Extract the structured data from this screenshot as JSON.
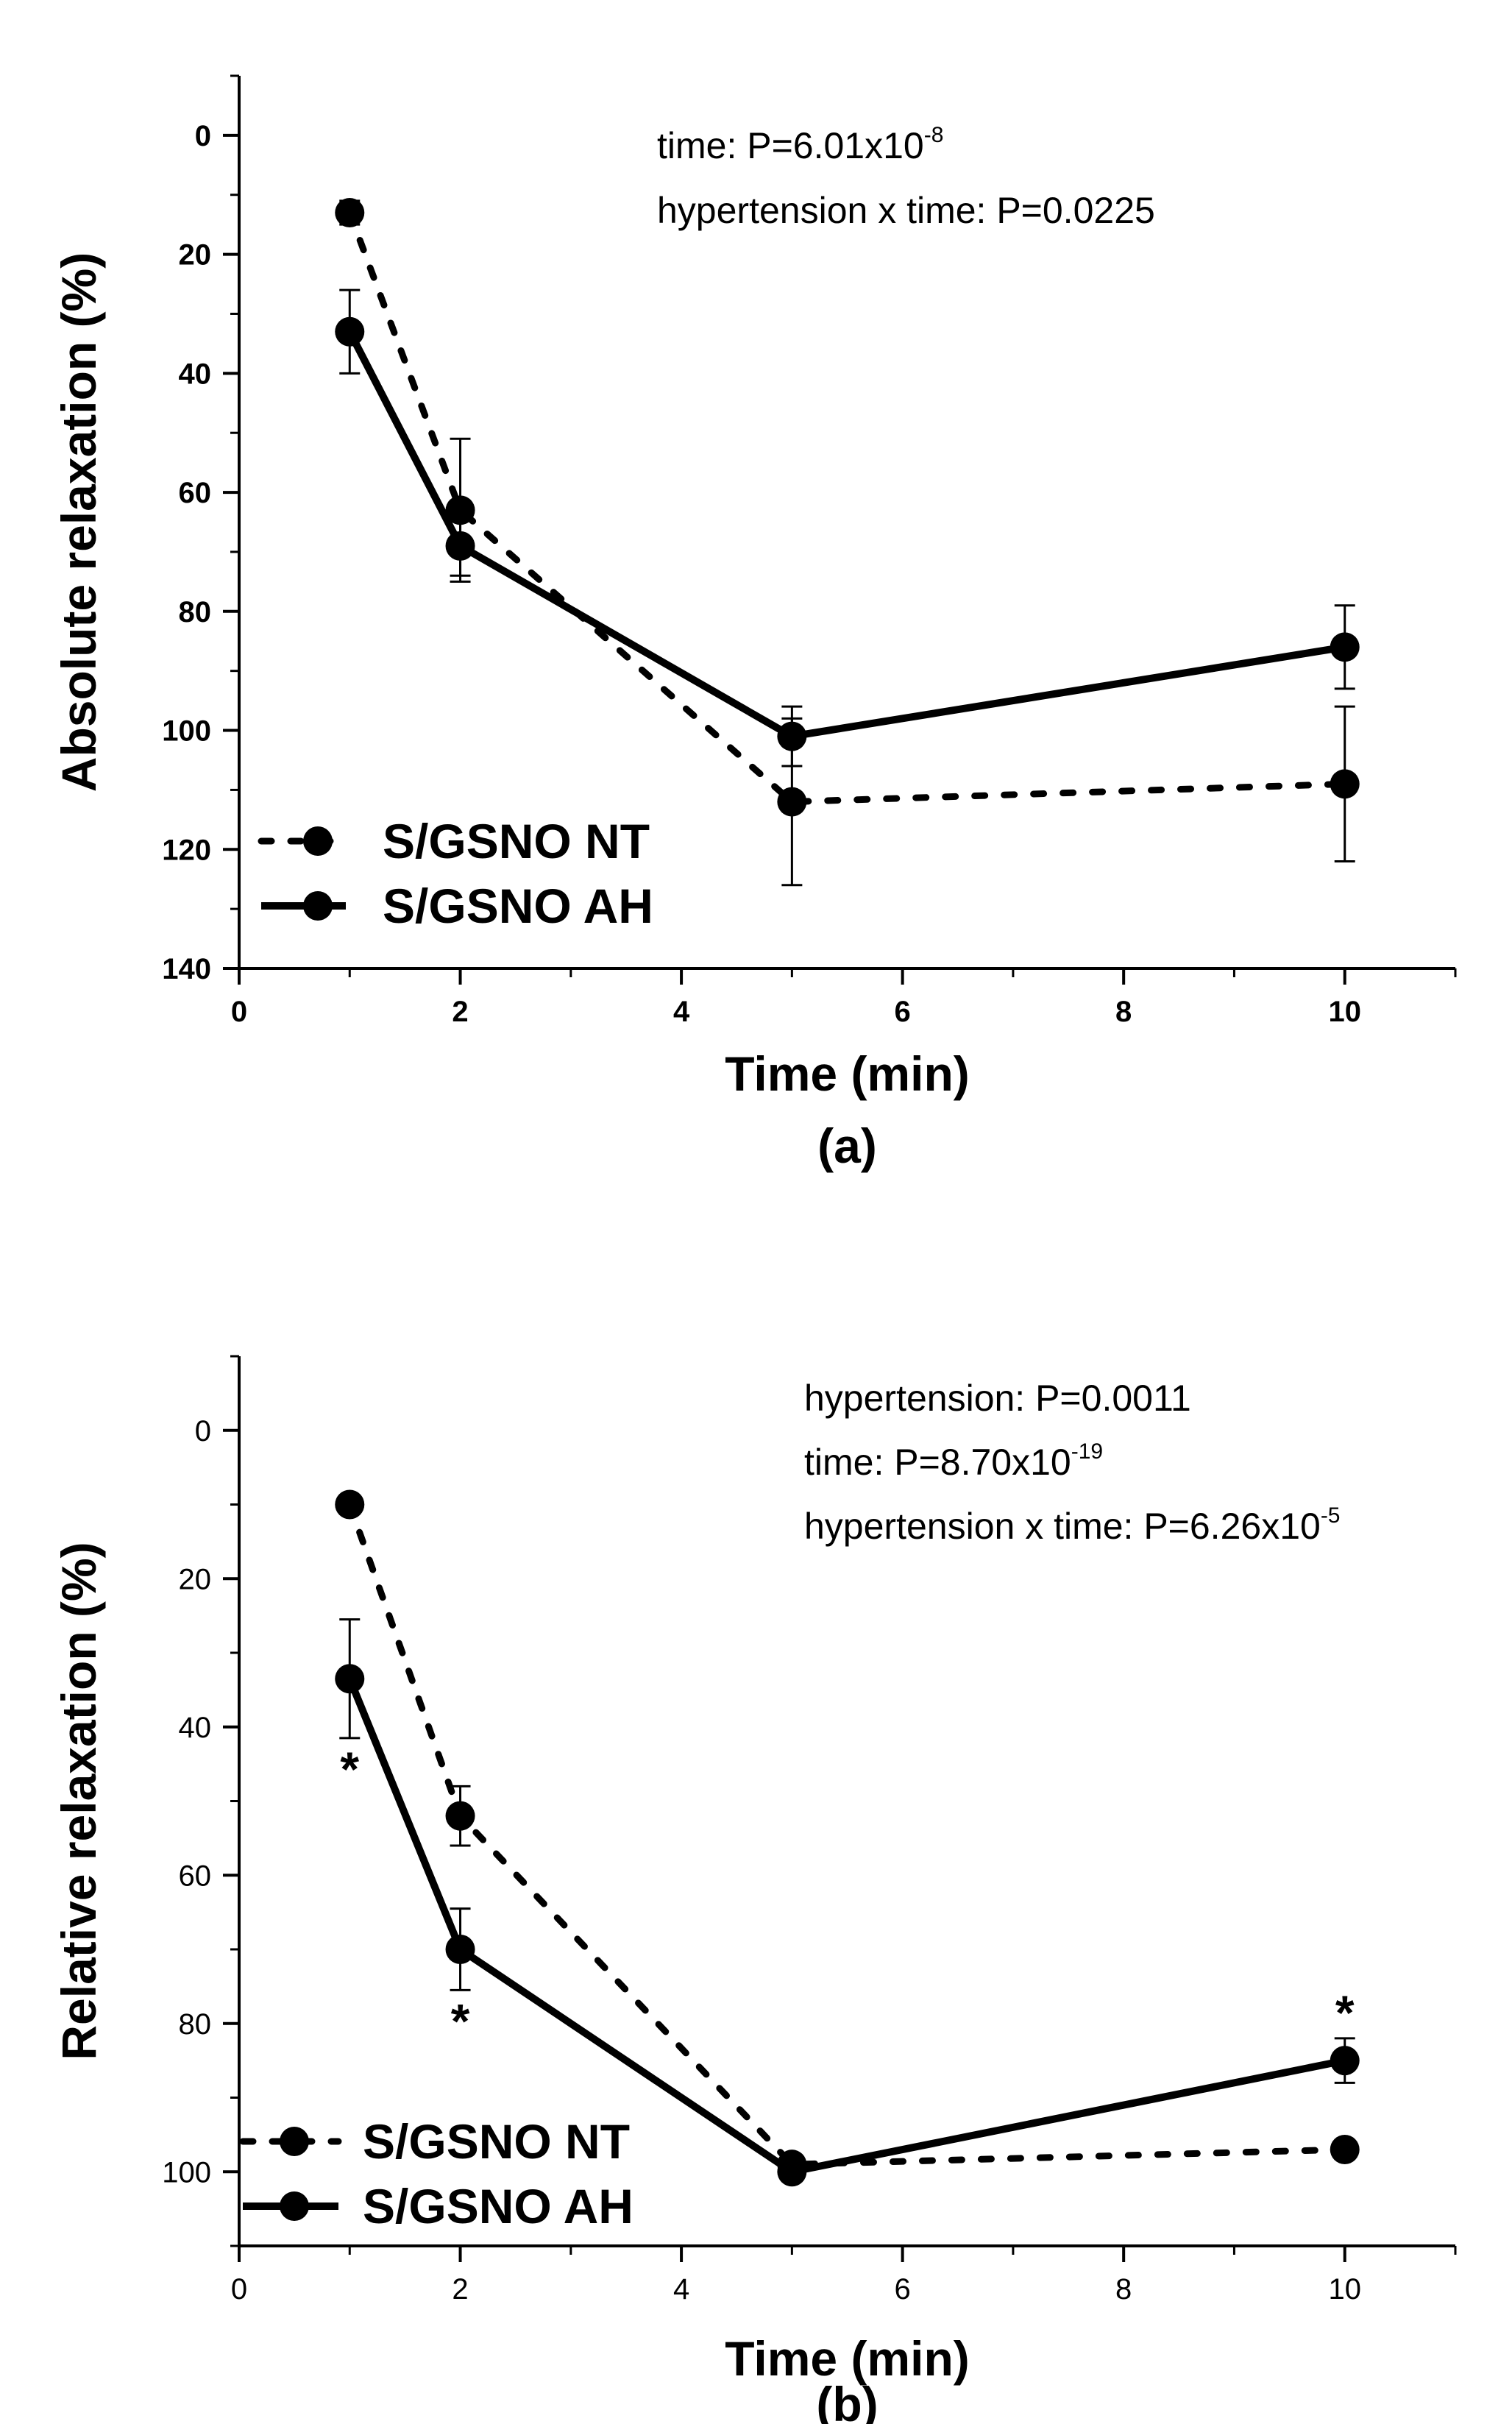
{
  "chart_data": [
    {
      "type": "line",
      "panel_label": "(a)",
      "xlabel": "Time (min)",
      "ylabel": "Absolute relaxation (%)",
      "xlim": [
        0,
        11
      ],
      "ylim": [
        140,
        -10
      ],
      "y_inverted": true,
      "xticks": [
        0,
        2,
        4,
        6,
        8,
        10
      ],
      "yticks": [
        0,
        20,
        40,
        60,
        80,
        100,
        120,
        140
      ],
      "x": [
        1,
        2,
        5,
        10
      ],
      "series": [
        {
          "name": "S/GSNO NT",
          "line_style": "dotted",
          "values": [
            13,
            63,
            112,
            109
          ],
          "errors": [
            2,
            12,
            14,
            13
          ]
        },
        {
          "name": "S/GSNO AH",
          "line_style": "solid",
          "values": [
            33,
            69,
            101,
            86
          ],
          "errors": [
            7,
            5,
            5,
            7
          ]
        }
      ],
      "annotations": [
        {
          "text": "time: P=6.01x10",
          "sup": "-8"
        },
        {
          "text": "hypertension x time: P=0.0225",
          "sup": ""
        }
      ],
      "significance": [],
      "legend_position": "bottom-left"
    },
    {
      "type": "line",
      "panel_label": "(b)",
      "xlabel": "Time (min)",
      "ylabel": "Relative relaxation (%)",
      "xlim": [
        0,
        11
      ],
      "ylim": [
        110,
        -10
      ],
      "y_inverted": true,
      "xticks": [
        0,
        2,
        4,
        6,
        8,
        10
      ],
      "yticks": [
        0,
        20,
        40,
        60,
        80,
        100
      ],
      "x": [
        1,
        2,
        5,
        10
      ],
      "series": [
        {
          "name": "S/GSNO NT",
          "line_style": "dotted",
          "values": [
            10,
            52,
            99,
            97
          ],
          "errors": [
            0,
            4,
            0,
            0
          ]
        },
        {
          "name": "S/GSNO AH",
          "line_style": "solid",
          "values": [
            33.5,
            70,
            100,
            85
          ],
          "errors": [
            8,
            5.5,
            0,
            3
          ]
        }
      ],
      "annotations": [
        {
          "text": "hypertension: P=0.0011",
          "sup": ""
        },
        {
          "text": "time: P=8.70x10",
          "sup": "-19"
        },
        {
          "text": "hypertension x time: P=6.26x10",
          "sup": "-5"
        }
      ],
      "significance": [
        {
          "x": 1,
          "label": "*"
        },
        {
          "x": 2,
          "label": "*"
        },
        {
          "x": 10,
          "label": "*"
        }
      ],
      "legend_position": "bottom-left"
    }
  ]
}
